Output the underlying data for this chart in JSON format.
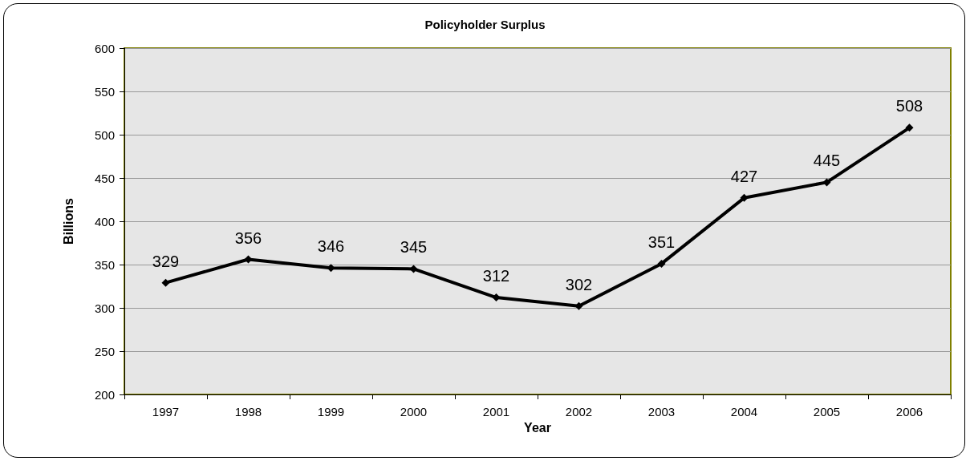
{
  "chart_data": {
    "type": "line",
    "title": "Policyholder Surplus",
    "xlabel": "Year",
    "ylabel": "Billions",
    "categories": [
      "1997",
      "1998",
      "1999",
      "2000",
      "2001",
      "2002",
      "2003",
      "2004",
      "2005",
      "2006"
    ],
    "series": [
      {
        "color": "#000000",
        "values": [
          329,
          356,
          346,
          345,
          312,
          302,
          351,
          427,
          445,
          508
        ]
      }
    ],
    "ylim": [
      200,
      600
    ],
    "yticks": [
      200,
      250,
      300,
      350,
      400,
      450,
      500,
      550,
      600
    ],
    "grid": "y",
    "marker": "diamond",
    "line_style": "solid",
    "data_labels": true
  }
}
